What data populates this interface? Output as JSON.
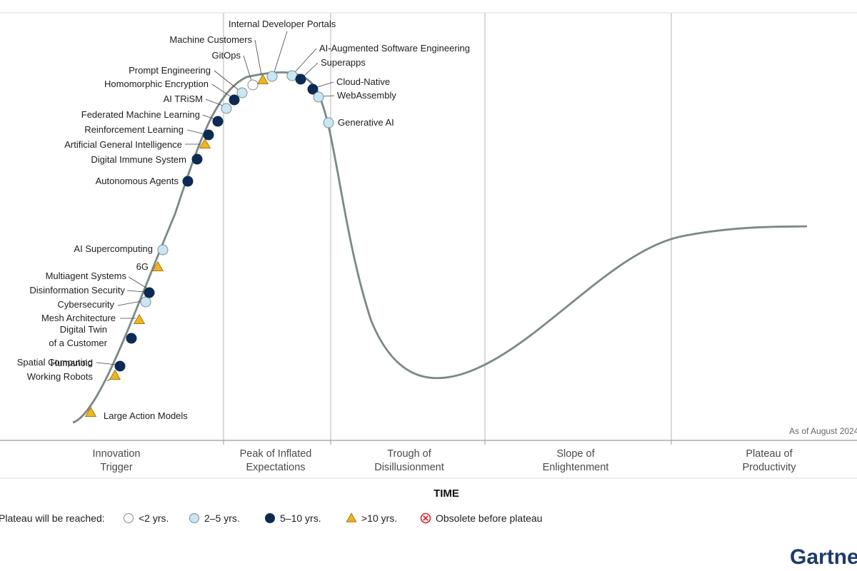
{
  "chart_data": {
    "type": "hype-cycle",
    "x_axis_label": "TIME",
    "as_of": "As of August 2024",
    "phases": [
      "Innovation\nTrigger",
      "Peak of Inflated\nExpectations",
      "Trough of\nDisillusionment",
      "Slope of\nEnlightenment",
      "Plateau of\nProductivity"
    ],
    "legend": {
      "prefix": "Plateau will be reached:",
      "items": [
        {
          "key": "lt2",
          "label": "<2 yrs.",
          "marker": "circle",
          "color": "#ffffff"
        },
        {
          "key": "2to5",
          "label": "2–5 yrs.",
          "marker": "circle",
          "color": "#c9e6f5"
        },
        {
          "key": "5to10",
          "label": "5–10 yrs.",
          "marker": "circle",
          "color": "#0d2a52"
        },
        {
          "key": "gt10",
          "label": ">10 yrs.",
          "marker": "triangle",
          "color": "#f0b41e"
        },
        {
          "key": "obsolete",
          "label": "Obsolete before plateau",
          "marker": "x-circle",
          "color": "#d9222a"
        }
      ]
    },
    "technologies": [
      {
        "name": "Large Action Models",
        "phase": "Innovation Trigger",
        "plateau": "gt10"
      },
      {
        "name": "Humanoid\nWorking Robots",
        "phase": "Innovation Trigger",
        "plateau": "gt10"
      },
      {
        "name": "Spatial Computing",
        "phase": "Innovation Trigger",
        "plateau": "5to10"
      },
      {
        "name": "Digital Twin\nof a Customer",
        "phase": "Innovation Trigger",
        "plateau": "5to10"
      },
      {
        "name": "Mesh Architecture",
        "phase": "Innovation Trigger",
        "plateau": "gt10"
      },
      {
        "name": "Cybersecurity",
        "phase": "Innovation Trigger",
        "plateau": "2to5"
      },
      {
        "name": "Disinformation Security",
        "phase": "Innovation Trigger",
        "plateau": "5to10"
      },
      {
        "name": "Multiagent Systems",
        "phase": "Innovation Trigger",
        "plateau": "5to10"
      },
      {
        "name": "6G",
        "phase": "Innovation Trigger",
        "plateau": "gt10"
      },
      {
        "name": "AI Supercomputing",
        "phase": "Innovation Trigger",
        "plateau": "2to5"
      },
      {
        "name": "Autonomous Agents",
        "phase": "Innovation Trigger",
        "plateau": "5to10"
      },
      {
        "name": "Digital Immune System",
        "phase": "Innovation Trigger",
        "plateau": "5to10"
      },
      {
        "name": "Artificial General Intelligence",
        "phase": "Innovation Trigger",
        "plateau": "gt10"
      },
      {
        "name": "Reinforcement Learning",
        "phase": "Innovation Trigger",
        "plateau": "5to10"
      },
      {
        "name": "Federated Machine Learning",
        "phase": "Innovation Trigger",
        "plateau": "5to10"
      },
      {
        "name": "AI TRiSM",
        "phase": "Peak of Inflated Expectations",
        "plateau": "2to5"
      },
      {
        "name": "Homomorphic Encryption",
        "phase": "Peak of Inflated Expectations",
        "plateau": "5to10"
      },
      {
        "name": "Prompt Engineering",
        "phase": "Peak of Inflated Expectations",
        "plateau": "2to5"
      },
      {
        "name": "GitOps",
        "phase": "Peak of Inflated Expectations",
        "plateau": "lt2"
      },
      {
        "name": "Machine Customers",
        "phase": "Peak of Inflated Expectations",
        "plateau": "gt10"
      },
      {
        "name": "Internal Developer Portals",
        "phase": "Peak of Inflated Expectations",
        "plateau": "2to5"
      },
      {
        "name": "AI-Augmented Software Engineering",
        "phase": "Peak of Inflated Expectations",
        "plateau": "2to5"
      },
      {
        "name": "Superapps",
        "phase": "Peak of Inflated Expectations",
        "plateau": "5to10"
      },
      {
        "name": "Cloud-Native",
        "phase": "Peak of Inflated Expectations",
        "plateau": "5to10"
      },
      {
        "name": "WebAssembly",
        "phase": "Peak of Inflated Expectations",
        "plateau": "2to5"
      },
      {
        "name": "Generative AI",
        "phase": "Trough of Disillusionment",
        "plateau": "2to5"
      }
    ]
  },
  "brand": "Gartner"
}
